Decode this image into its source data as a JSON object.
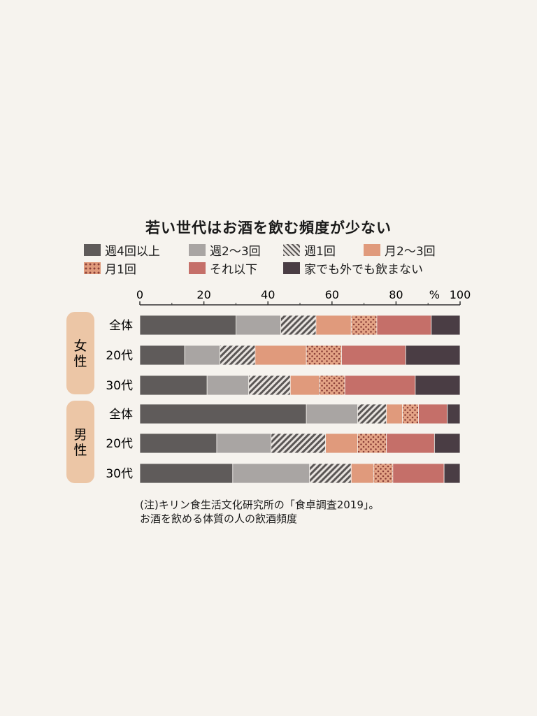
{
  "chart_data": {
    "type": "bar",
    "orientation": "horizontal",
    "stacked": true,
    "title": "若い世代はお酒を飲む頻度が少ない",
    "x_ticks": [
      "0",
      "20",
      "40",
      "60",
      "80",
      "100"
    ],
    "unit_label": "%",
    "xlim": [
      0,
      100
    ],
    "groups": [
      {
        "label": "女性",
        "color": "#ecc6a6",
        "rows": [
          "全体",
          "20代",
          "30代"
        ]
      },
      {
        "label": "男性",
        "color": "#ecc6a6",
        "rows": [
          "全体",
          "20代",
          "30代"
        ]
      }
    ],
    "categories": [
      "全体",
      "20代",
      "30代",
      "全体",
      "20代",
      "30代"
    ],
    "series": [
      {
        "name": "週4回以上",
        "color": "#5f5b5a",
        "pattern": "solid",
        "values": [
          30,
          14,
          21,
          52,
          24,
          29
        ]
      },
      {
        "name": "週2〜3回",
        "color": "#a9a5a3",
        "pattern": "solid",
        "values": [
          14,
          11,
          13,
          16,
          17,
          24
        ]
      },
      {
        "name": "週1回",
        "color": "#8c8887",
        "pattern": "hatch",
        "values": [
          11,
          11,
          13,
          9,
          17,
          13
        ]
      },
      {
        "name": "月2〜3回",
        "color": "#e09a7c",
        "pattern": "solid",
        "values": [
          11,
          16,
          9,
          5,
          10,
          7
        ]
      },
      {
        "name": "月1回",
        "color": "#e09a7c",
        "pattern": "dots",
        "values": [
          8,
          11,
          8,
          5,
          9,
          6
        ]
      },
      {
        "name": "それ以下",
        "color": "#c56f69",
        "pattern": "solid",
        "values": [
          17,
          20,
          22,
          9,
          15,
          16
        ]
      },
      {
        "name": "家でも外でも飲まない",
        "color": "#4a3d44",
        "pattern": "solid",
        "values": [
          9,
          17,
          14,
          4,
          8,
          5
        ]
      }
    ]
  },
  "note": {
    "line1": "(注)キリン食生活文化研究所の「食卓調査2019」。",
    "line2": "お酒を飲める体質の人の飲酒頻度"
  }
}
